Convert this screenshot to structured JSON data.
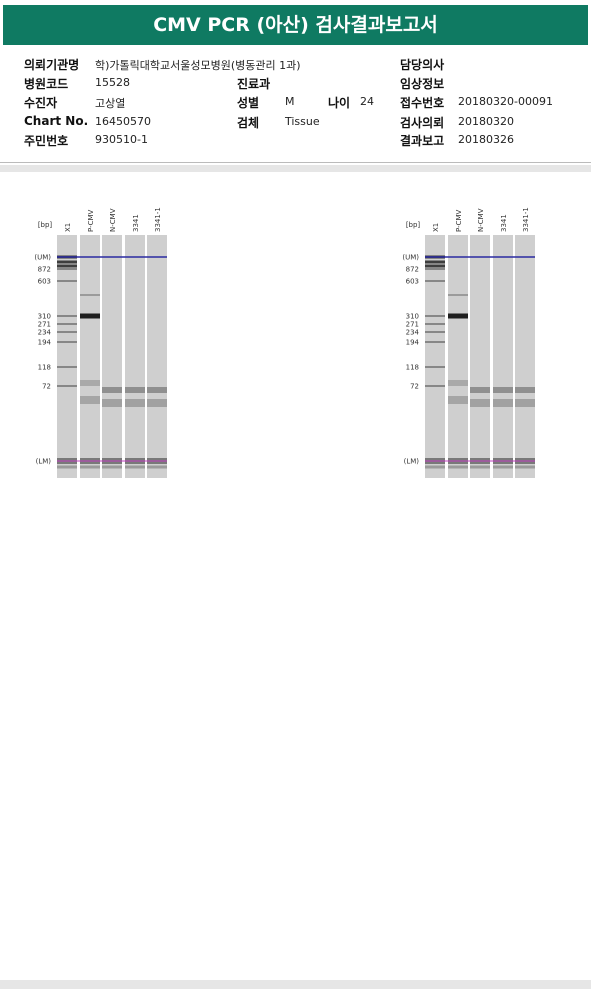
{
  "header": {
    "title": "CMV PCR (아산) 검사결과보고서"
  },
  "info": [
    [
      {
        "label": "의뢰기관명",
        "value": "학)가톨릭대학교서울성모병원(병동관리 1과)"
      },
      null,
      {
        "label": "담당의사",
        "value": null
      }
    ],
    [
      {
        "label": "병원코드",
        "value": "15528"
      },
      {
        "label": "진료과",
        "value": null
      },
      {
        "label": "임상정보",
        "value": null
      }
    ],
    [
      {
        "label": "수진자",
        "value": "고상열"
      },
      {
        "label": "성별",
        "value": "M",
        "label2": "나이",
        "value2": "24"
      },
      {
        "label": "접수번호",
        "value": "20180320-00091"
      }
    ],
    [
      {
        "label": "Chart No.",
        "value": "16450570"
      },
      {
        "label": "검체",
        "value": "Tissue"
      },
      {
        "label": "검사의뢰",
        "value": "20180320"
      }
    ],
    [
      {
        "label": "주민번호",
        "value": "930510-1"
      },
      null,
      {
        "label": "결과보고",
        "value": "20180326"
      }
    ]
  ],
  "gels": [
    {
      "unit": "[bp]",
      "lanes": [
        "X1",
        "P-CMV",
        "N-CMV",
        "3341",
        "3341-1"
      ],
      "markers": [
        "(UM)",
        "872",
        "603",
        "310",
        "271",
        "234",
        "194",
        "118",
        "72",
        "(LM)"
      ]
    },
    {
      "unit": "[bp]",
      "lanes": [
        "X1",
        "P-CMV",
        "N-CMV",
        "3341",
        "3341-1"
      ],
      "markers": [
        "(UM)",
        "872",
        "603",
        "310",
        "271",
        "234",
        "194",
        "118",
        "72",
        "(LM)"
      ]
    }
  ]
}
